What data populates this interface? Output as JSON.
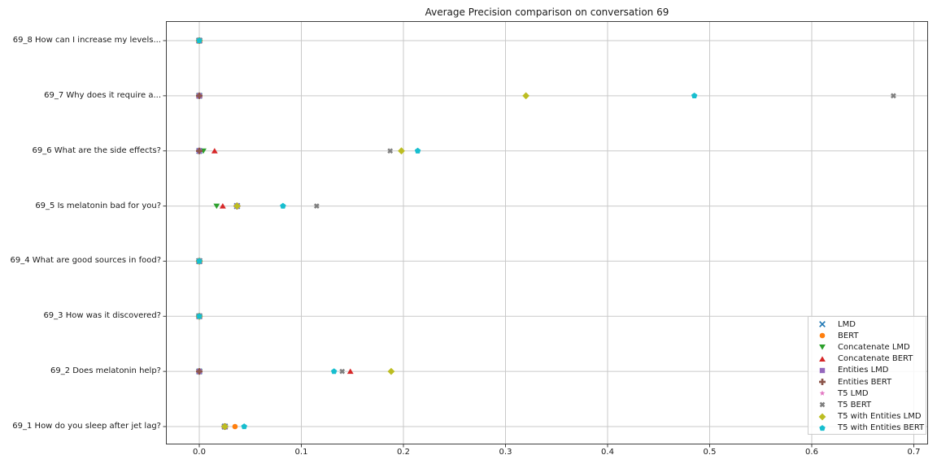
{
  "chart_data": {
    "type": "scatter",
    "title": "Average Precision comparison on conversation 69",
    "xlabel": "",
    "ylabel": "",
    "grid": true,
    "legend_position": "lower right",
    "xlim": [
      -0.033,
      0.714
    ],
    "x_ticks": [
      0,
      0.1,
      0.2,
      0.3,
      0.4,
      0.5,
      0.6,
      0.7
    ],
    "x_tick_labels": [
      "0.0",
      "0.1",
      "0.2",
      "0.3",
      "0.4",
      "0.5",
      "0.6",
      "0.7"
    ],
    "category_order": "top-to-bottom",
    "categories": [
      "69_8 How can I increase my levels...",
      "69_7 Why does it require a...",
      "69_6 What are the side effects?",
      "69_5 Is melatonin bad for you?",
      "69_4 What are good sources in food?",
      "69_3 How was it discovered?",
      "69_2 Does melatonin help?",
      "69_1 How do you sleep after jet lag?"
    ],
    "series": [
      {
        "name": "LMD",
        "marker": "x",
        "color": "#1f77b4",
        "values": [
          0,
          0,
          0,
          0.037,
          0,
          0,
          0,
          0.025
        ]
      },
      {
        "name": "BERT",
        "marker": "circle",
        "color": "#ff7f0e",
        "values": [
          0,
          0,
          0,
          0.037,
          0,
          0,
          0,
          0.035
        ]
      },
      {
        "name": "Concatenate LMD",
        "marker": "triangle-down",
        "color": "#2ca02c",
        "values": [
          0,
          0,
          0.004,
          0.017,
          0,
          0,
          0,
          0.025
        ]
      },
      {
        "name": "Concatenate BERT",
        "marker": "triangle-up",
        "color": "#d62728",
        "values": [
          0,
          0,
          0.015,
          0.023,
          0,
          0,
          0.148,
          0.025
        ]
      },
      {
        "name": "Entities LMD",
        "marker": "square",
        "color": "#9467bd",
        "values": [
          0,
          0,
          0,
          0.037,
          0,
          0,
          0,
          0.025
        ]
      },
      {
        "name": "Entities BERT",
        "marker": "plus",
        "color": "#8c564b",
        "values": [
          0,
          0,
          0,
          0.037,
          0,
          0,
          0,
          0.025
        ]
      },
      {
        "name": "T5 LMD",
        "marker": "star",
        "color": "#e377c2",
        "values": [
          0,
          0,
          0,
          0.037,
          0,
          0,
          0,
          0.025
        ]
      },
      {
        "name": "T5 BERT",
        "marker": "x-filled",
        "color": "#7f7f7f",
        "values": [
          0,
          0.68,
          0.187,
          0.115,
          0,
          0,
          0.14,
          0.025
        ]
      },
      {
        "name": "T5 with Entities LMD",
        "marker": "diamond",
        "color": "#bcbd22",
        "values": [
          0,
          0.32,
          0.198,
          0.037,
          0,
          0,
          0.188,
          0.025
        ]
      },
      {
        "name": "T5 with Entities BERT",
        "marker": "pentagon",
        "color": "#17becf",
        "values": [
          0,
          0.485,
          0.214,
          0.082,
          0,
          0,
          0.132,
          0.044
        ]
      }
    ]
  }
}
